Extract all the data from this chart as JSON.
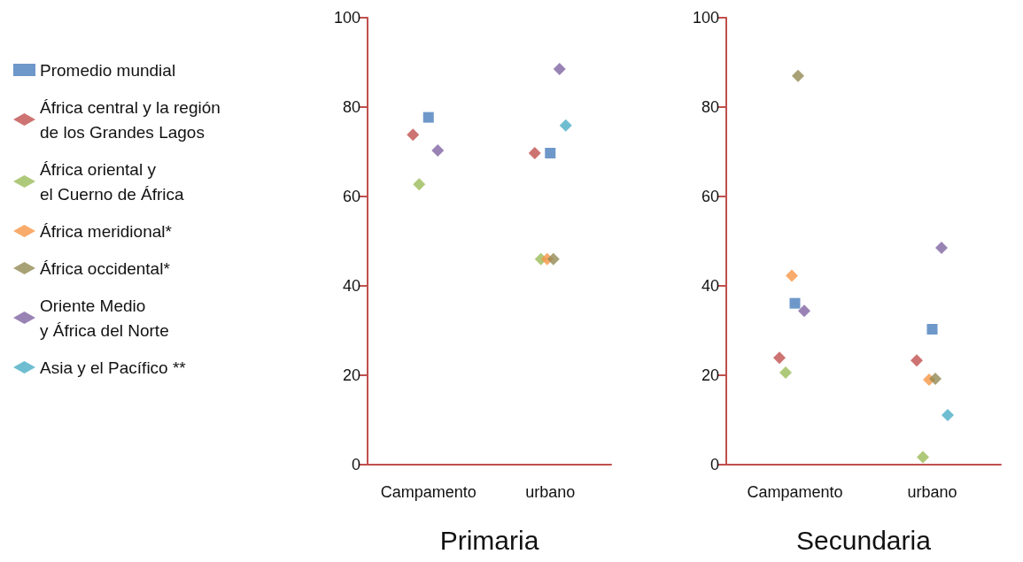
{
  "chart_data": [
    {
      "type": "scatter",
      "xlabel": "Primaria",
      "categories": [
        "Campamento",
        "urbano"
      ],
      "ylim": [
        0,
        100
      ],
      "yticks": [
        0,
        20,
        40,
        60,
        80,
        100
      ],
      "grid": false,
      "legend": "left",
      "series": [
        {
          "name": "Promedio mundial",
          "color": "#4a7ebb",
          "marker": "square",
          "values": [
            77.7,
            69.7
          ]
        },
        {
          "name": "África central y la región\nde los Grandes Lagos",
          "color": "#c0504d",
          "marker": "diamond",
          "values": [
            73.8,
            69.7
          ]
        },
        {
          "name": "África oriental y\nel Cuerno de África",
          "color": "#9bbb59",
          "marker": "diamond",
          "values": [
            62.7,
            46.0
          ]
        },
        {
          "name": "África meridional*",
          "color": "#f79646",
          "marker": "diamond",
          "values": [
            null,
            46.0
          ]
        },
        {
          "name": "África occidental*",
          "color": "#948a54",
          "marker": "diamond",
          "values": [
            null,
            46.0
          ]
        },
        {
          "name": "Oriente Medio\ny África del Norte",
          "color": "#8064a2",
          "marker": "diamond",
          "values": [
            70.3,
            88.5
          ]
        },
        {
          "name": "Asia y el Pacífico **",
          "color": "#4bacc6",
          "marker": "diamond",
          "values": [
            null,
            75.9
          ]
        }
      ]
    },
    {
      "type": "scatter",
      "xlabel": "Secundaria",
      "categories": [
        "Campamento",
        "urbano"
      ],
      "ylim": [
        0,
        100
      ],
      "yticks": [
        0,
        20,
        40,
        60,
        80,
        100
      ],
      "grid": false,
      "series": [
        {
          "color": "#4a7ebb",
          "marker": "square",
          "values": [
            36.1,
            30.3
          ]
        },
        {
          "color": "#c0504d",
          "marker": "diamond",
          "values": [
            23.9,
            23.3
          ]
        },
        {
          "color": "#9bbb59",
          "marker": "diamond",
          "values": [
            20.6,
            1.7
          ]
        },
        {
          "color": "#f79646",
          "marker": "diamond",
          "values": [
            42.3,
            19.0
          ]
        },
        {
          "color": "#948a54",
          "marker": "diamond",
          "values": [
            87.0,
            19.2
          ]
        },
        {
          "color": "#8064a2",
          "marker": "diamond",
          "values": [
            34.4,
            48.5
          ]
        },
        {
          "color": "#4bacc6",
          "marker": "diamond",
          "values": [
            null,
            11.1
          ]
        }
      ]
    }
  ]
}
